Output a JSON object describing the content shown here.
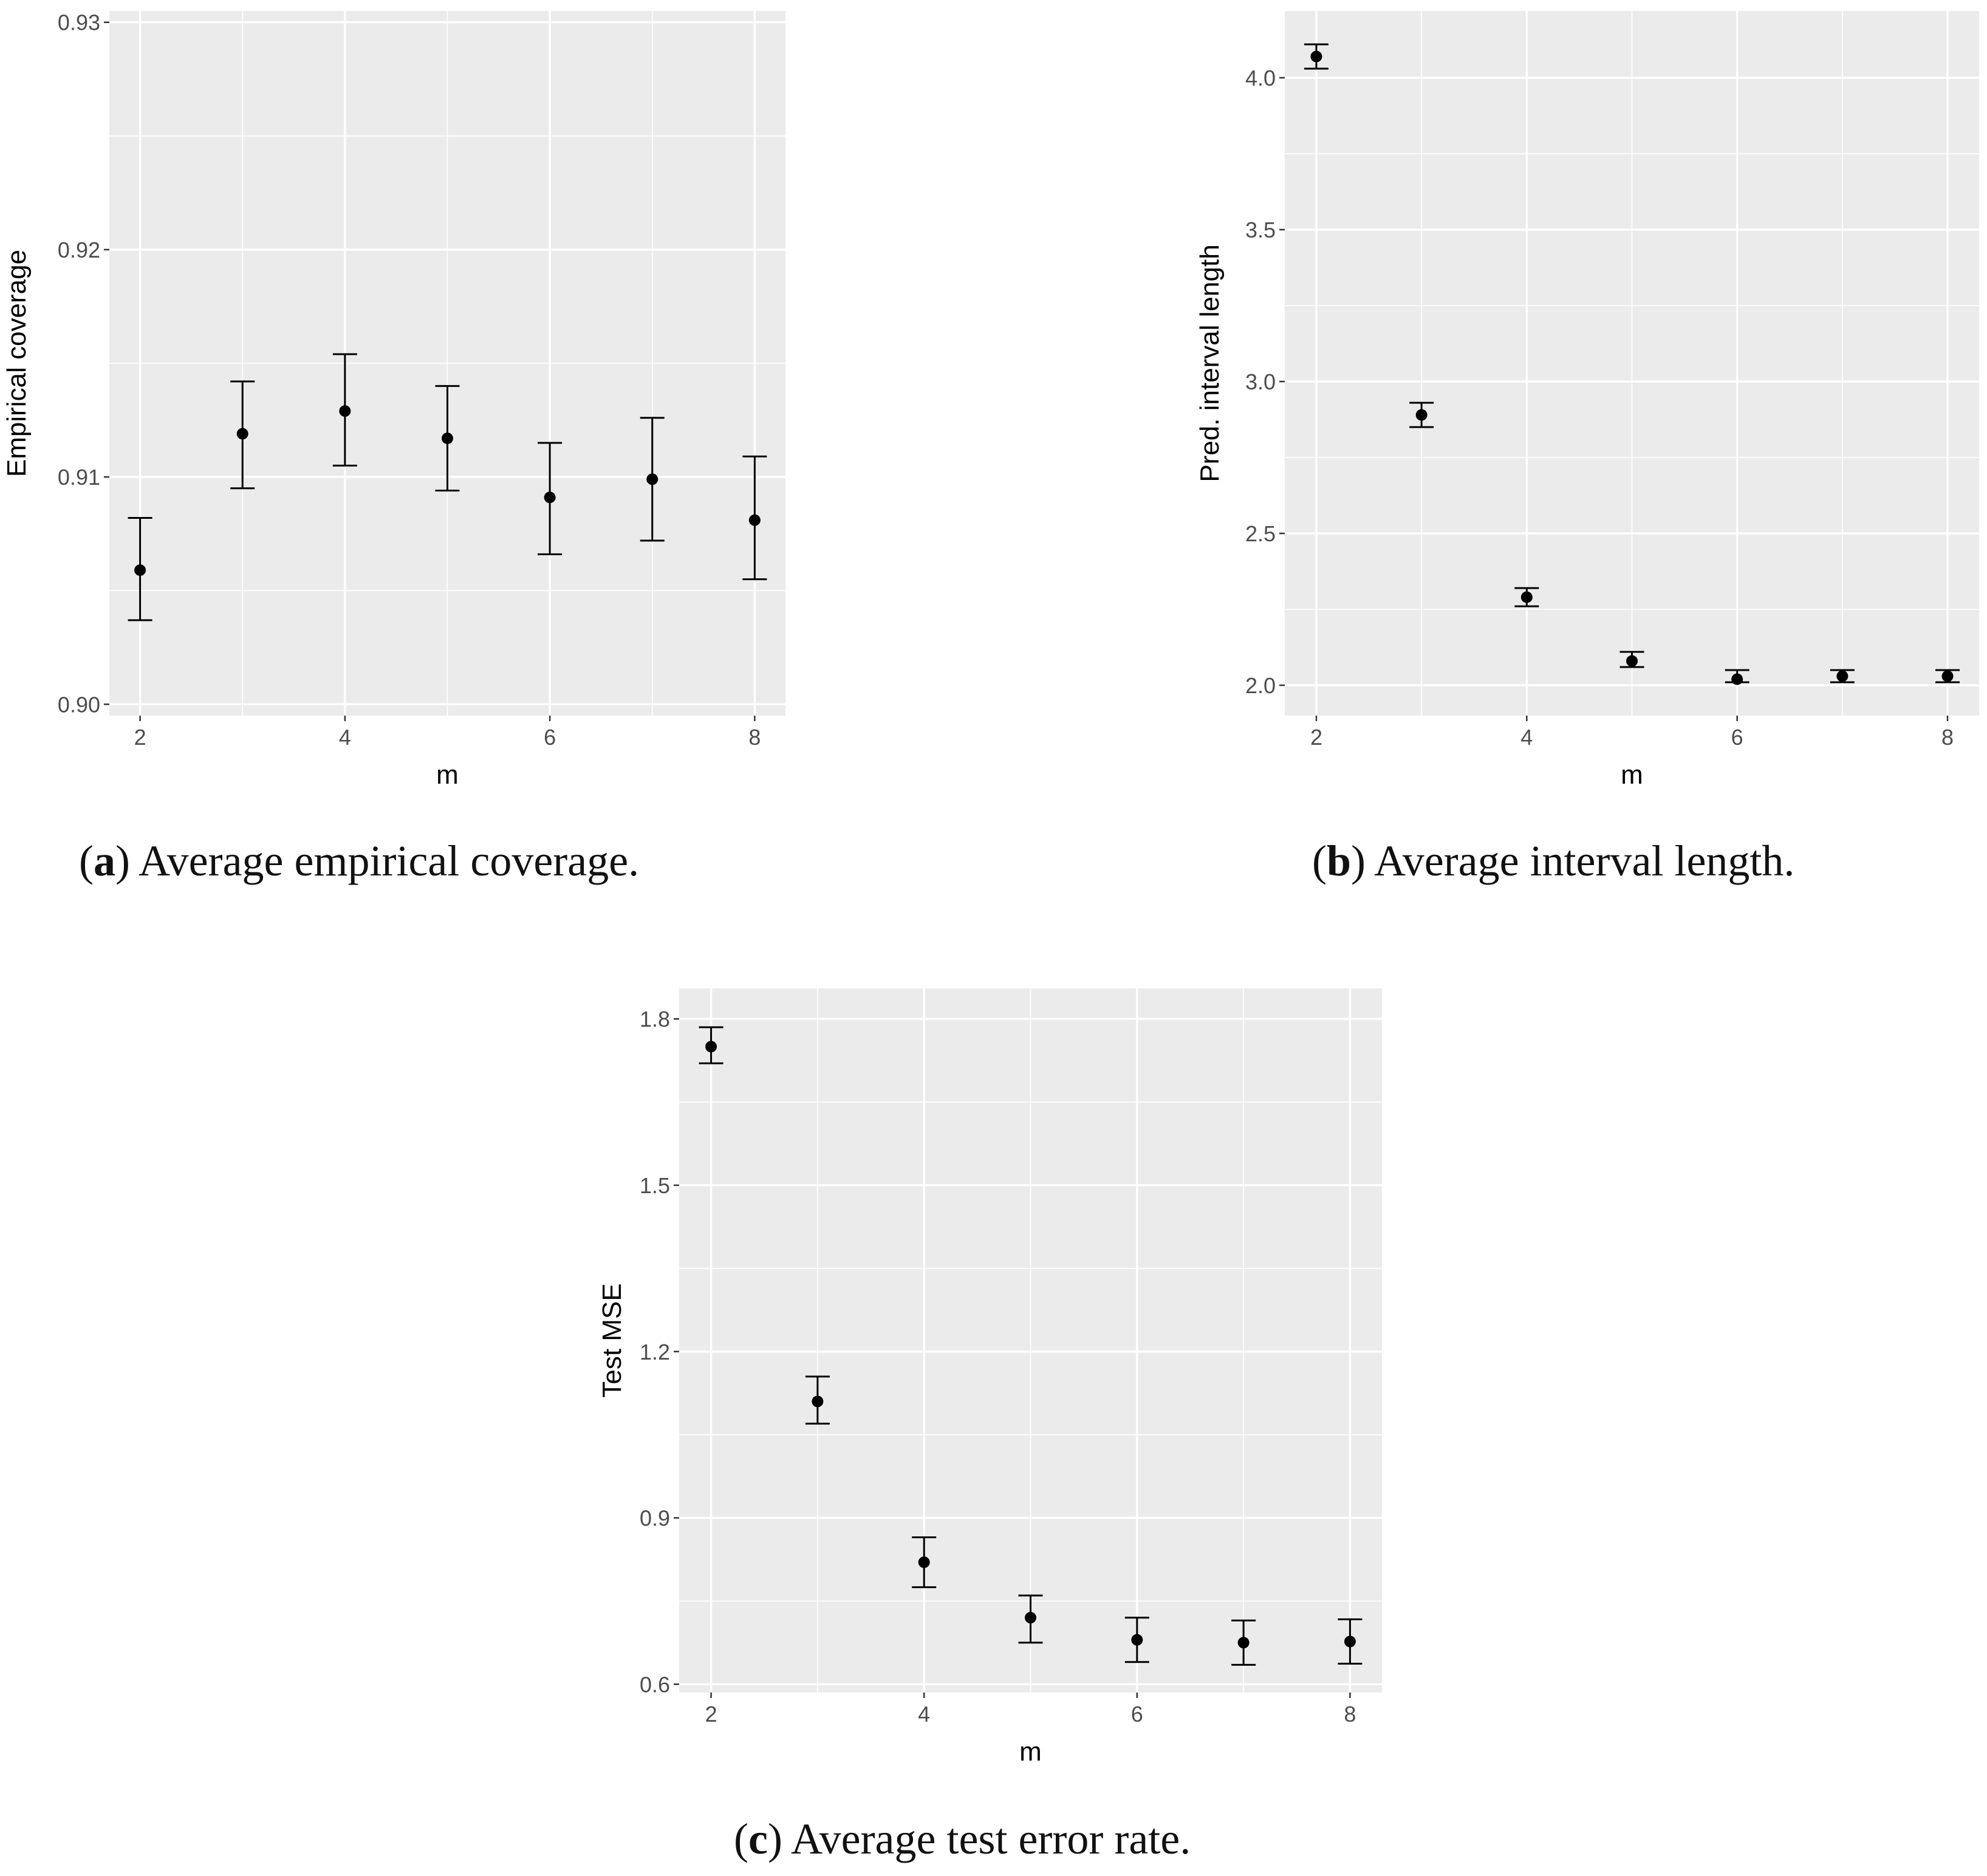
{
  "colors": {
    "panel_bg": "#EBEBEB",
    "grid": "#FFFFFF",
    "point": "#000000",
    "tick": "#4D4D4D"
  },
  "chart_data": [
    {
      "id": "a",
      "type": "scatter",
      "title": "",
      "xlabel": "m",
      "ylabel": "Empirical coverage",
      "xlim": [
        1.7,
        8.3
      ],
      "ylim": [
        0.8995,
        0.9305
      ],
      "xticks": [
        2,
        4,
        6,
        8
      ],
      "xtick_labels": [
        "2",
        "4",
        "6",
        "8"
      ],
      "yticks": [
        0.9,
        0.91,
        0.92,
        0.93
      ],
      "ytick_labels": [
        "0.90",
        "0.91",
        "0.92",
        "0.93"
      ],
      "x": [
        2,
        3,
        4,
        5,
        6,
        7,
        8
      ],
      "y": [
        0.9059,
        0.9119,
        0.9129,
        0.9117,
        0.9091,
        0.9099,
        0.9081
      ],
      "ymin": [
        0.9037,
        0.9095,
        0.9105,
        0.9094,
        0.9066,
        0.9072,
        0.9055
      ],
      "ymax": [
        0.9082,
        0.9142,
        0.9154,
        0.914,
        0.9115,
        0.9126,
        0.9109
      ],
      "caption": {
        "letter": "a",
        "text": "Average empirical coverage."
      }
    },
    {
      "id": "b",
      "type": "scatter",
      "title": "",
      "xlabel": "m",
      "ylabel": "Pred. interval length",
      "xlim": [
        1.7,
        8.3
      ],
      "ylim": [
        1.9,
        4.22
      ],
      "xticks": [
        2,
        4,
        6,
        8
      ],
      "xtick_labels": [
        "2",
        "4",
        "6",
        "8"
      ],
      "yticks": [
        2.0,
        2.5,
        3.0,
        3.5,
        4.0
      ],
      "ytick_labels": [
        "2.0",
        "2.5",
        "3.0",
        "3.5",
        "4.0"
      ],
      "x": [
        2,
        3,
        4,
        5,
        6,
        7,
        8
      ],
      "y": [
        4.07,
        2.89,
        2.29,
        2.08,
        2.02,
        2.03,
        2.03
      ],
      "ymin": [
        4.03,
        2.85,
        2.26,
        2.06,
        2.01,
        2.01,
        2.01
      ],
      "ymax": [
        4.11,
        2.93,
        2.32,
        2.11,
        2.05,
        2.05,
        2.05
      ],
      "caption": {
        "letter": "b",
        "text": "Average interval length."
      }
    },
    {
      "id": "c",
      "type": "scatter",
      "title": "",
      "xlabel": "m",
      "ylabel": "Test MSE",
      "xlim": [
        1.7,
        8.3
      ],
      "ylim": [
        0.585,
        1.855
      ],
      "xticks": [
        2,
        4,
        6,
        8
      ],
      "xtick_labels": [
        "2",
        "4",
        "6",
        "8"
      ],
      "yticks": [
        0.6,
        0.9,
        1.2,
        1.5,
        1.8
      ],
      "ytick_labels": [
        "0.6",
        "0.9",
        "1.2",
        "1.5",
        "1.8"
      ],
      "x": [
        2,
        3,
        4,
        5,
        6,
        7,
        8
      ],
      "y": [
        1.75,
        1.11,
        0.82,
        0.72,
        0.68,
        0.675,
        0.677
      ],
      "ymin": [
        1.72,
        1.07,
        0.775,
        0.675,
        0.64,
        0.635,
        0.637
      ],
      "ymax": [
        1.785,
        1.155,
        0.865,
        0.76,
        0.72,
        0.715,
        0.717
      ],
      "caption": {
        "letter": "c",
        "text": "Average test error rate."
      }
    }
  ]
}
